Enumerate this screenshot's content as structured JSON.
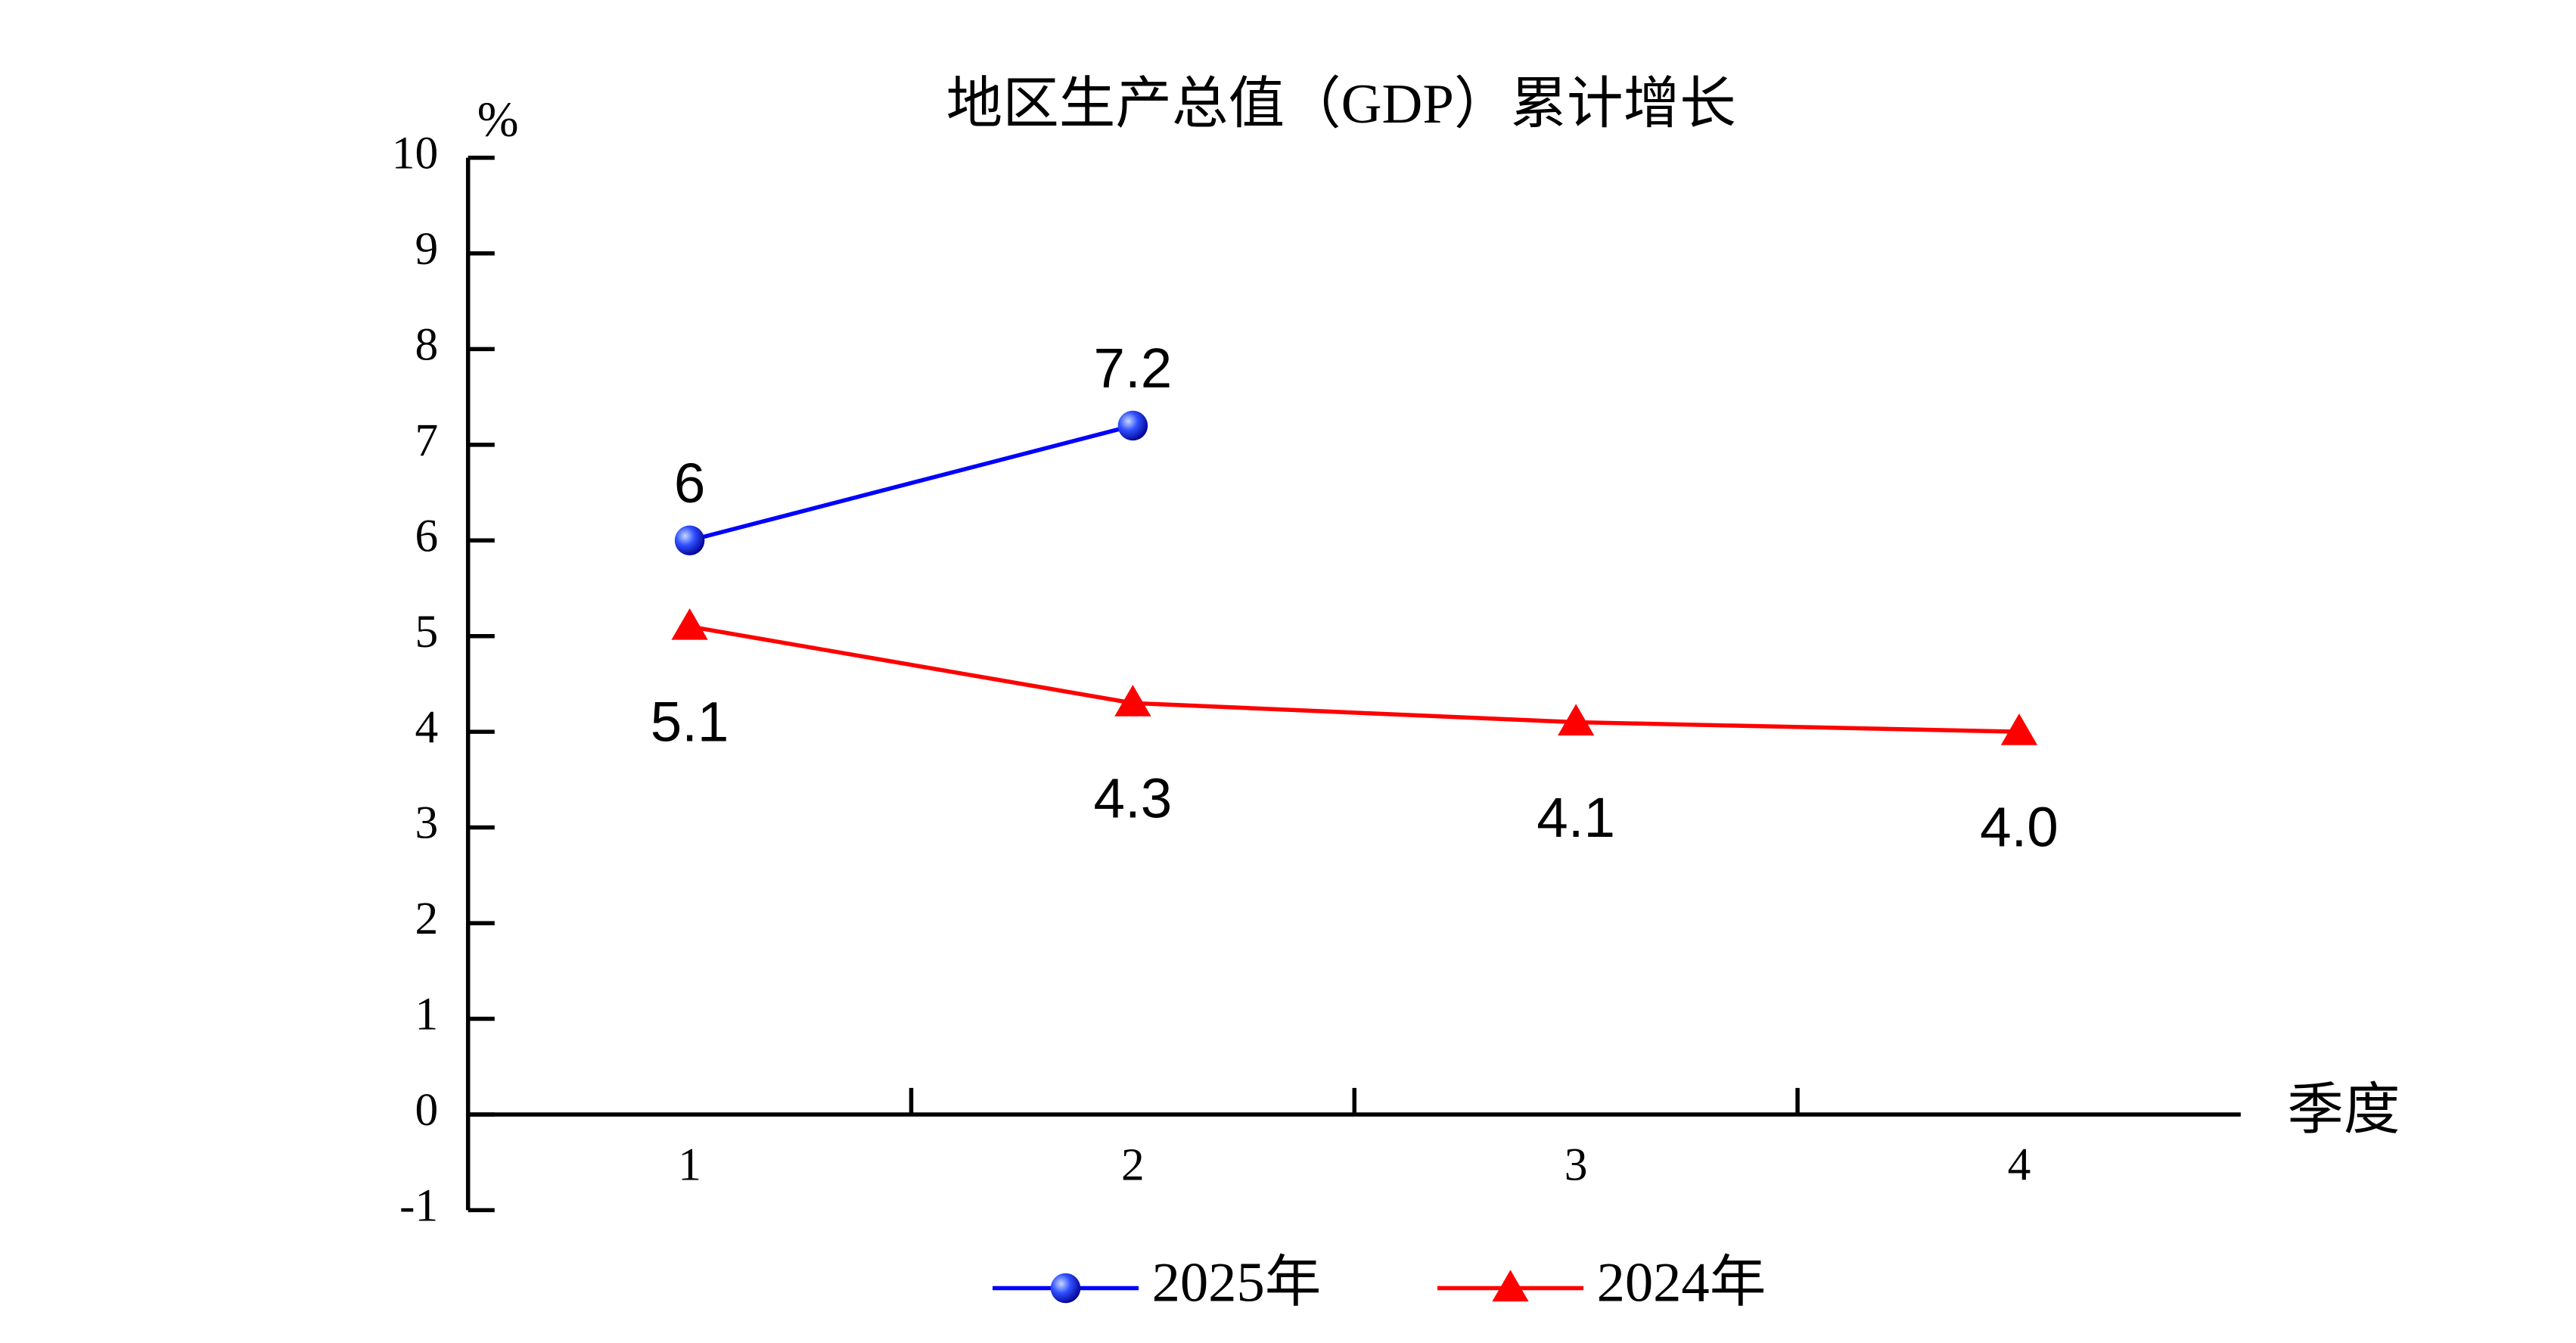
{
  "chart_data": {
    "type": "line",
    "title": "地区生产总值（GDP）累计增长",
    "y_label": "%",
    "x_label": "季度",
    "categories": [
      "1",
      "2",
      "3",
      "4"
    ],
    "series": [
      {
        "name": "2025年",
        "color": "#0000ff",
        "marker": "circle",
        "label_position": "above",
        "values": [
          6,
          7.2,
          null,
          null
        ],
        "value_labels": [
          "6",
          "7.2",
          null,
          null
        ]
      },
      {
        "name": "2024年",
        "color": "#ff0000",
        "marker": "triangle",
        "label_position": "below",
        "values": [
          5.1,
          4.3,
          4.1,
          4.0
        ],
        "value_labels": [
          "5.1",
          "4.3",
          "4.1",
          "4.0"
        ]
      }
    ],
    "ylim": [
      -1,
      10
    ],
    "yticks": [
      -1,
      0,
      1,
      2,
      3,
      4,
      5,
      6,
      7,
      8,
      9,
      10
    ],
    "grid": false,
    "legend": "bottom"
  }
}
